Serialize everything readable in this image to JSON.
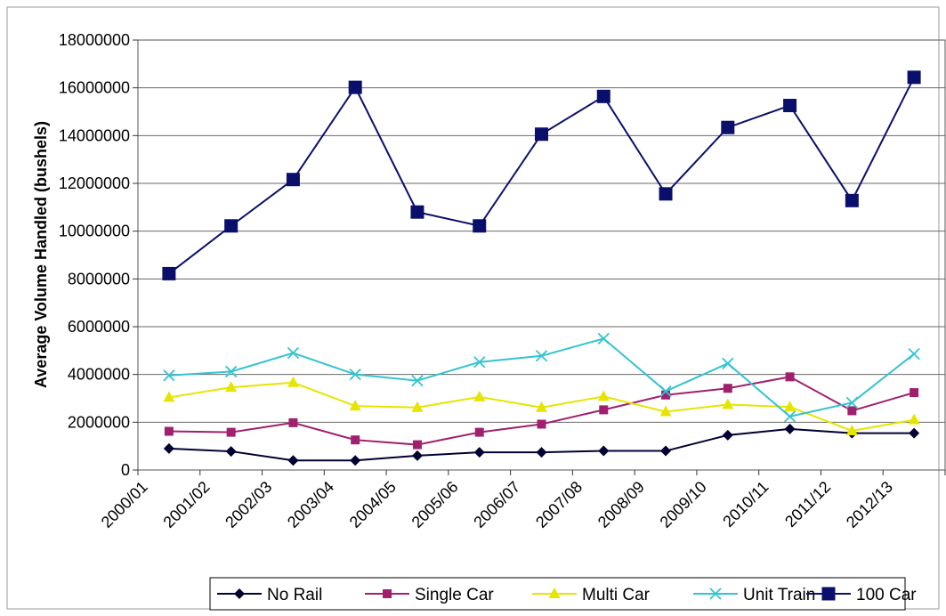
{
  "chart_data": {
    "type": "line",
    "title": "",
    "xlabel": "",
    "ylabel": "Average Volume Handled (bushels)",
    "ylim": [
      0,
      18000000
    ],
    "yticks": [
      "0",
      "2000000",
      "4000000",
      "6000000",
      "8000000",
      "10000000",
      "12000000",
      "14000000",
      "16000000",
      "18000000"
    ],
    "grid": "horizontal",
    "legend": "bottom",
    "categories": [
      "2000/01",
      "2001/02",
      "2002/03",
      "2003/04",
      "2004/05",
      "2005/06",
      "2006/07",
      "2007/08",
      "2008/09",
      "2009/10",
      "2010/11",
      "2011/12",
      "2012/13"
    ],
    "series": [
      {
        "name": "No Rail",
        "color": "#000033",
        "marker": "diamond",
        "values": [
          900000,
          780000,
          400000,
          400000,
          600000,
          740000,
          740000,
          800000,
          800000,
          1460000,
          1720000,
          1540000,
          1540000
        ]
      },
      {
        "name": "Single Car",
        "color": "#A0206E",
        "marker": "square-small",
        "values": [
          1620000,
          1580000,
          1980000,
          1260000,
          1060000,
          1580000,
          1920000,
          2520000,
          3140000,
          3420000,
          3900000,
          2480000,
          3240000
        ]
      },
      {
        "name": "Multi Car",
        "color": "#E5E500",
        "marker": "triangle",
        "values": [
          3040000,
          3460000,
          3660000,
          2680000,
          2620000,
          3060000,
          2620000,
          3080000,
          2440000,
          2740000,
          2640000,
          1640000,
          2100000
        ]
      },
      {
        "name": "Unit Train",
        "color": "#33C4D0",
        "marker": "x",
        "values": [
          3960000,
          4120000,
          4900000,
          4000000,
          3740000,
          4520000,
          4780000,
          5500000,
          3300000,
          4460000,
          2240000,
          2820000,
          4860000
        ]
      },
      {
        "name": "100 Car",
        "color": "#0A0F6B",
        "marker": "square-large",
        "values": [
          8220000,
          10220000,
          12160000,
          16020000,
          10800000,
          10220000,
          14060000,
          15640000,
          11560000,
          14340000,
          15260000,
          11280000,
          16440000
        ]
      }
    ]
  }
}
